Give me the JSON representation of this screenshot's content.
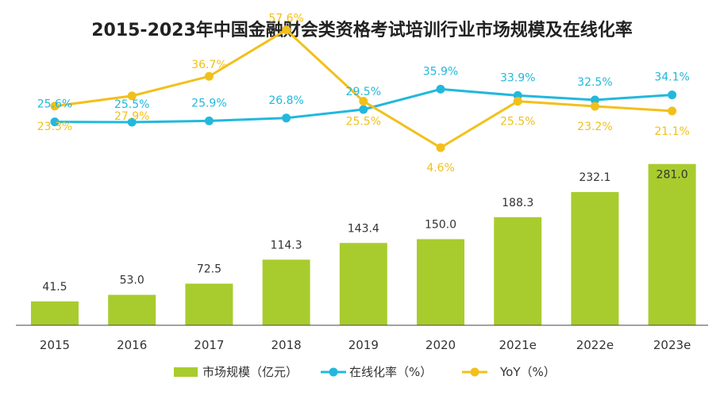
{
  "chart_data": {
    "type": "bar",
    "title": "2015-2023年中国金融财会类资格考试培训行业市场规模及在线化率",
    "categories": [
      "2015",
      "2016",
      "2017",
      "2018",
      "2019",
      "2020",
      "2021e",
      "2022e",
      "2023e"
    ],
    "series": [
      {
        "name": "市场规模（亿元）",
        "type": "bar",
        "values": [
          41.5,
          53.0,
          72.5,
          114.3,
          143.4,
          150.0,
          188.3,
          232.1,
          281.0
        ],
        "labels": [
          "41.5",
          "53.0",
          "72.5",
          "114.3",
          "143.4",
          "150.0",
          "188.3",
          "232.1",
          "281.0"
        ],
        "color": "#a8cc2e"
      },
      {
        "name": "在线化率（%）",
        "type": "line",
        "values": [
          25.6,
          25.5,
          25.9,
          26.8,
          29.5,
          35.9,
          33.9,
          32.5,
          34.1
        ],
        "labels": [
          "25.6%",
          "25.5%",
          "25.9%",
          "26.8%",
          "29.5%",
          "35.9%",
          "33.9%",
          "32.5%",
          "34.1%"
        ],
        "color": "#22b8dc"
      },
      {
        "name": "YoY（%）",
        "type": "line",
        "values": [
          23.3,
          27.9,
          36.7,
          57.6,
          25.5,
          4.6,
          25.5,
          23.2,
          21.1
        ],
        "labels": [
          "23.3%",
          "27.9%",
          "36.7%",
          "57.6%",
          "25.5%",
          "4.6%",
          "25.5%",
          "23.2%",
          "21.1%"
        ],
        "color": "#f2c01a"
      }
    ],
    "legend": [
      "市场规模（亿元）",
      "在线化率（%）",
      "YoY（%）"
    ],
    "legend_position": "bottom",
    "grid": false
  }
}
